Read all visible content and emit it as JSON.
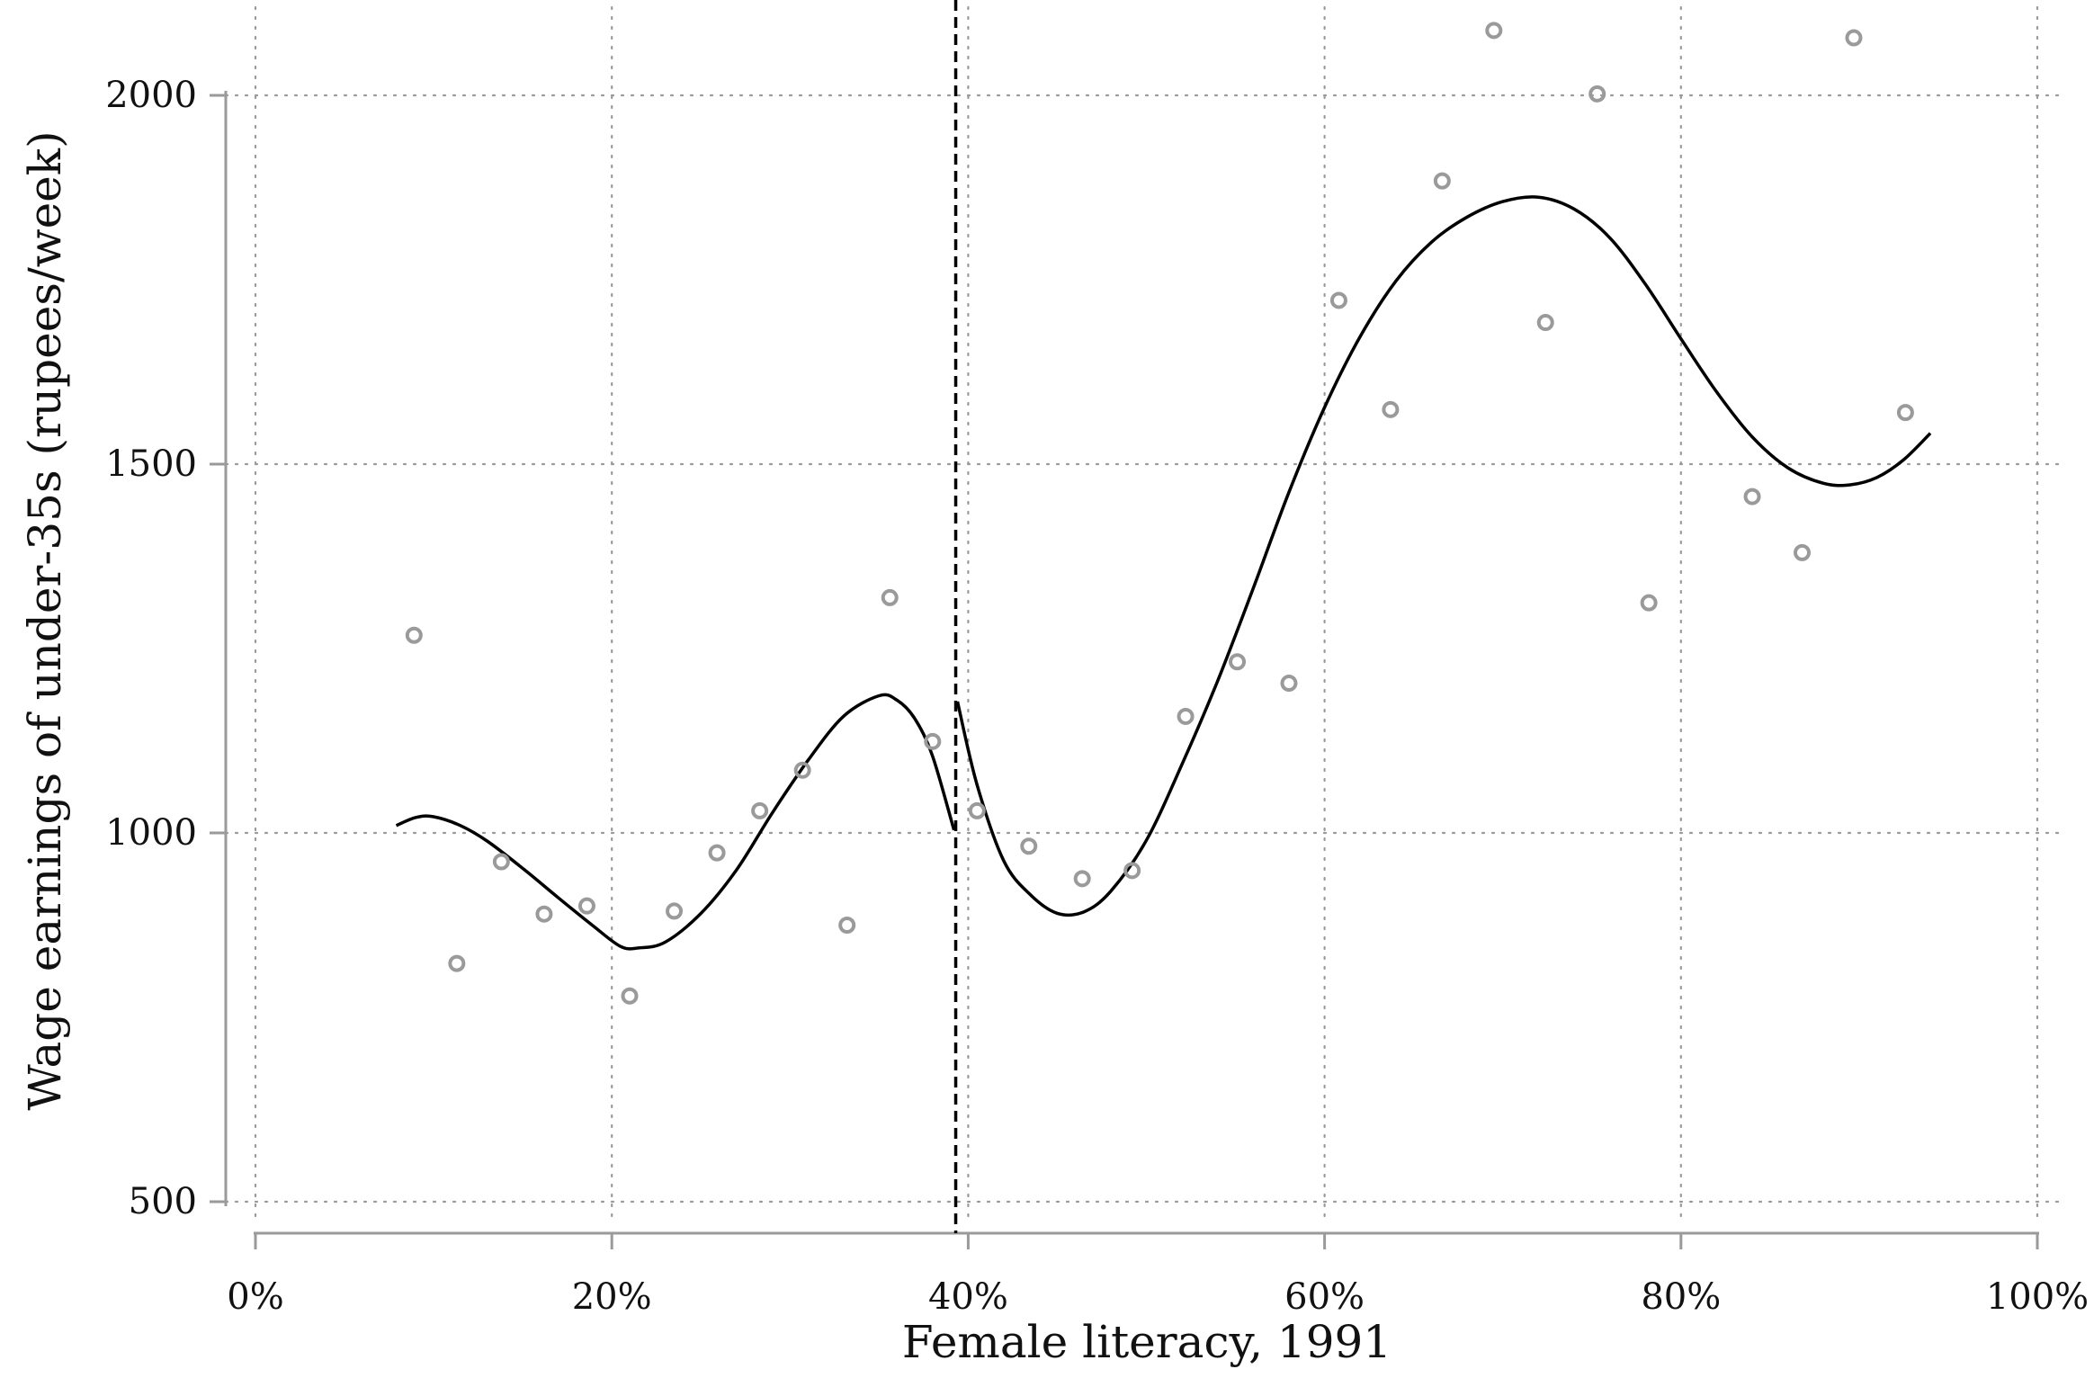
{
  "chart_data": {
    "type": "scatter",
    "xlabel": "Female literacy, 1991",
    "ylabel": "Wage earnings of under-35s (rupees/week)",
    "xlim": [
      0,
      100
    ],
    "ylim": [
      500,
      2000
    ],
    "x_unit_suffix": "%",
    "x_ticks": [
      0,
      20,
      40,
      60,
      80,
      100
    ],
    "x_tick_labels": [
      "0%",
      "20%",
      "40%",
      "60%",
      "80%",
      "100%"
    ],
    "y_ticks": [
      500,
      1000,
      1500,
      2000
    ],
    "y_tick_labels": [
      "500",
      "1000",
      "1500",
      "2000"
    ],
    "grid": true,
    "threshold_x": 39.3,
    "series": [
      {
        "kind": "scatter",
        "color": "#9a9a9a",
        "marker": "hollow-circle",
        "points": [
          [
            8.9,
            1268
          ],
          [
            11.3,
            823
          ],
          [
            13.8,
            961
          ],
          [
            16.2,
            890
          ],
          [
            18.6,
            901
          ],
          [
            21.0,
            779
          ],
          [
            23.5,
            894
          ],
          [
            25.9,
            973
          ],
          [
            28.3,
            1030
          ],
          [
            30.7,
            1085
          ],
          [
            33.2,
            875
          ],
          [
            35.6,
            1319
          ],
          [
            38.0,
            1124
          ],
          [
            40.5,
            1030
          ],
          [
            43.4,
            982
          ],
          [
            46.4,
            938
          ],
          [
            49.2,
            949
          ],
          [
            52.2,
            1158
          ],
          [
            55.1,
            1232
          ],
          [
            58.0,
            1203
          ],
          [
            60.8,
            1722
          ],
          [
            63.7,
            1574
          ],
          [
            66.6,
            1884
          ],
          [
            69.5,
            2088
          ],
          [
            72.4,
            1692
          ],
          [
            75.3,
            2002
          ],
          [
            78.2,
            1312
          ],
          [
            84.0,
            1456
          ],
          [
            86.8,
            1380
          ],
          [
            89.7,
            2078
          ],
          [
            92.6,
            1570
          ]
        ]
      },
      {
        "kind": "line",
        "color": "#000000",
        "segment": "left",
        "points": [
          [
            7.9,
            1010
          ],
          [
            9.0,
            1021
          ],
          [
            10.0,
            1022
          ],
          [
            11.5,
            1010
          ],
          [
            13.0,
            989
          ],
          [
            15.0,
            952
          ],
          [
            17.0,
            912
          ],
          [
            19.0,
            873
          ],
          [
            20.5,
            846
          ],
          [
            21.5,
            844
          ],
          [
            23.0,
            852
          ],
          [
            25.0,
            891
          ],
          [
            27.0,
            950
          ],
          [
            29.0,
            1027
          ],
          [
            31.0,
            1098
          ],
          [
            33.0,
            1158
          ],
          [
            35.0,
            1186
          ],
          [
            36.0,
            1180
          ],
          [
            37.0,
            1155
          ],
          [
            38.0,
            1104
          ],
          [
            39.2,
            1004
          ]
        ]
      },
      {
        "kind": "line",
        "color": "#000000",
        "segment": "right",
        "points": [
          [
            39.4,
            1178
          ],
          [
            40.5,
            1065
          ],
          [
            42.0,
            962
          ],
          [
            43.5,
            916
          ],
          [
            45.0,
            891
          ],
          [
            46.5,
            893
          ],
          [
            48.0,
            921
          ],
          [
            50.0,
            990
          ],
          [
            52.0,
            1093
          ],
          [
            54.0,
            1206
          ],
          [
            56.0,
            1332
          ],
          [
            58.0,
            1462
          ],
          [
            60.0,
            1577
          ],
          [
            62.0,
            1673
          ],
          [
            64.0,
            1748
          ],
          [
            66.0,
            1801
          ],
          [
            68.0,
            1835
          ],
          [
            70.0,
            1856
          ],
          [
            72.0,
            1862
          ],
          [
            74.0,
            1846
          ],
          [
            76.0,
            1807
          ],
          [
            78.0,
            1744
          ],
          [
            80.0,
            1670
          ],
          [
            82.0,
            1598
          ],
          [
            84.0,
            1537
          ],
          [
            86.0,
            1495
          ],
          [
            88.0,
            1474
          ],
          [
            89.5,
            1472
          ],
          [
            91.0,
            1482
          ],
          [
            92.5,
            1506
          ],
          [
            94.0,
            1542
          ]
        ]
      }
    ]
  }
}
